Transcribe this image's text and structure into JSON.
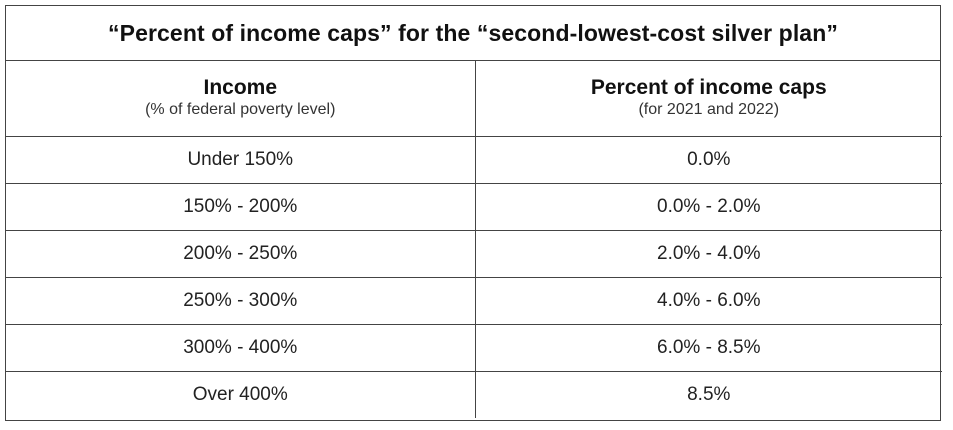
{
  "title": "“Percent of income caps” for the “second-lowest-cost silver plan”",
  "headers": {
    "col1": {
      "main": "Income",
      "sub": "(% of federal poverty level)"
    },
    "col2": {
      "main": "Percent of income caps",
      "sub": "(for 2021 and 2022)"
    }
  },
  "rows": [
    {
      "income": "Under 150%",
      "cap": "0.0%"
    },
    {
      "income": "150% - 200%",
      "cap": "0.0% - 2.0%"
    },
    {
      "income": "200% - 250%",
      "cap": "2.0% - 4.0%"
    },
    {
      "income": "250% - 300%",
      "cap": "4.0% - 6.0%"
    },
    {
      "income": "300% - 400%",
      "cap": "6.0% - 8.5%"
    },
    {
      "income": "Over 400%",
      "cap": "8.5%"
    }
  ]
}
